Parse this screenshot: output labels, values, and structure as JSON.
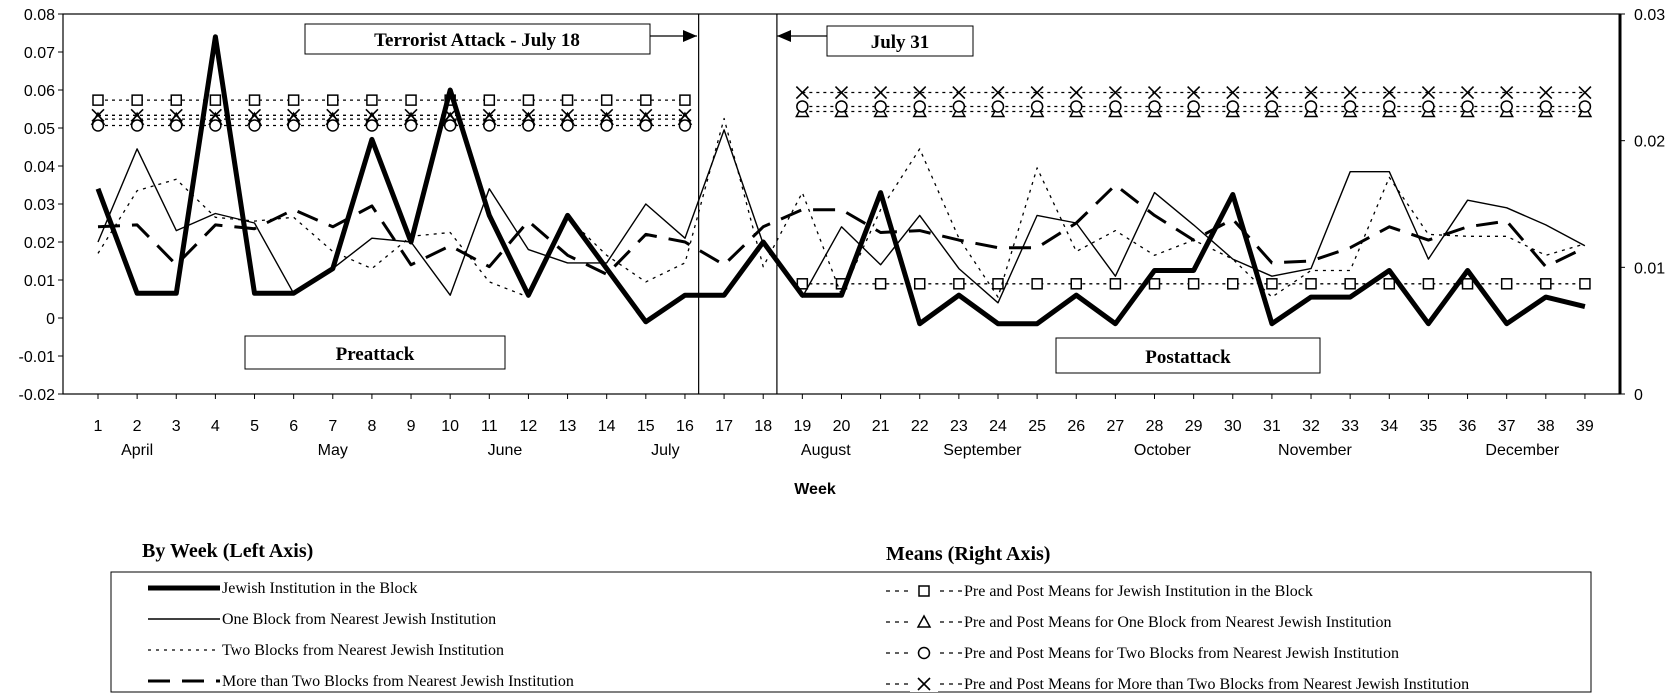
{
  "chart_data": {
    "type": "line",
    "xlabel": "Week",
    "x": [
      1,
      2,
      3,
      4,
      5,
      6,
      7,
      8,
      9,
      10,
      11,
      12,
      13,
      14,
      15,
      16,
      17,
      18,
      19,
      20,
      21,
      22,
      23,
      24,
      25,
      26,
      27,
      28,
      29,
      30,
      31,
      32,
      33,
      34,
      35,
      36,
      37,
      38,
      39
    ],
    "months": [
      {
        "label": "April",
        "week": 2
      },
      {
        "label": "May",
        "week": 7
      },
      {
        "label": "June",
        "week": 11.4
      },
      {
        "label": "July",
        "week": 15.5
      },
      {
        "label": "August",
        "week": 19.6
      },
      {
        "label": "September",
        "week": 23.6
      },
      {
        "label": "October",
        "week": 28.2
      },
      {
        "label": "November",
        "week": 32.1
      },
      {
        "label": "December",
        "week": 37.4
      }
    ],
    "y_left": {
      "min": -0.02,
      "max": 0.08,
      "ticks": [
        "-0.02",
        "-0.01",
        "0",
        "0.01",
        "0.02",
        "0.03",
        "0.04",
        "0.05",
        "0.06",
        "0.07",
        "0.08"
      ]
    },
    "y_right": {
      "min": 0,
      "max": 0.03,
      "ticks": [
        "0",
        "0.01",
        "0.02",
        "0.03"
      ]
    },
    "attack_lines": [
      16.35,
      18.35
    ],
    "annotations": {
      "attack": "Terrorist Attack - July 18",
      "july31": "July 31",
      "pre": "Preattack",
      "post": "Postattack"
    },
    "series": [
      {
        "name": "Jewish Institution in the Block",
        "style": "thick",
        "values": [
          0.034,
          0.0065,
          0.0065,
          0.074,
          0.0065,
          0.0065,
          0.013,
          0.047,
          0.02,
          0.06,
          0.027,
          0.006,
          0.027,
          0.013,
          -0.001,
          0.006,
          0.006,
          0.02,
          0.006,
          0.006,
          0.033,
          -0.0015,
          0.006,
          -0.0015,
          -0.0015,
          0.006,
          -0.0015,
          0.0125,
          0.0125,
          0.0325,
          -0.0015,
          0.0055,
          0.0055,
          0.0125,
          -0.0015,
          0.0125,
          -0.0015,
          0.0055,
          0.003
        ]
      },
      {
        "name": "One Block from Nearest Jewish Institution",
        "style": "thin",
        "values": [
          0.02,
          0.0445,
          0.023,
          0.0275,
          0.025,
          0.0065,
          0.013,
          0.021,
          0.02,
          0.006,
          0.034,
          0.018,
          0.0145,
          0.0145,
          0.03,
          0.021,
          0.0495,
          0.0195,
          0.0055,
          0.024,
          0.014,
          0.027,
          0.013,
          0.004,
          0.027,
          0.025,
          0.011,
          0.033,
          0.0245,
          0.0155,
          0.011,
          0.013,
          0.0385,
          0.0385,
          0.0155,
          0.031,
          0.029,
          0.0245,
          0.019
        ]
      },
      {
        "name": "Two Blocks from Nearest Jewish Institution",
        "style": "dotted",
        "values": [
          0.017,
          0.0335,
          0.0365,
          0.0265,
          0.0255,
          0.0265,
          0.0175,
          0.013,
          0.0215,
          0.0225,
          0.0095,
          0.0055,
          0.0265,
          0.0165,
          0.0095,
          0.0145,
          0.0525,
          0.0135,
          0.033,
          0.006,
          0.0285,
          0.0445,
          0.021,
          0.0055,
          0.0395,
          0.0175,
          0.023,
          0.0165,
          0.0205,
          0.0155,
          0.0055,
          0.0125,
          0.0125,
          0.037,
          0.022,
          0.0215,
          0.0215,
          0.0165,
          0.0195
        ]
      },
      {
        "name": "More than Two Blocks from Nearest Jewish Institution",
        "style": "dashed",
        "values": [
          0.024,
          0.0245,
          0.014,
          0.0245,
          0.0235,
          0.0285,
          0.024,
          0.0295,
          0.014,
          0.019,
          0.0135,
          0.0255,
          0.0165,
          0.0115,
          0.022,
          0.02,
          0.014,
          0.024,
          0.0285,
          0.0285,
          0.0225,
          0.023,
          0.0205,
          0.0185,
          0.0185,
          0.025,
          0.035,
          0.027,
          0.0205,
          0.026,
          0.0145,
          0.015,
          0.0185,
          0.024,
          0.0205,
          0.024,
          0.0255,
          0.0135,
          0.0185
        ]
      }
    ],
    "means": [
      {
        "name": "Pre and Post Means for Jewish Institution in the Block",
        "marker": "square",
        "pre": 0.0232,
        "post": 0.0087
      },
      {
        "name": "Pre and Post Means for One Block from Nearest Jewish Institution",
        "marker": "triangle",
        "pre": 0.0217,
        "post": 0.0223
      },
      {
        "name": "Pre and Post Means for Two Blocks from Nearest Jewish Institution",
        "marker": "circle",
        "pre": 0.0212,
        "post": 0.0227
      },
      {
        "name": "Pre and Post Means for More than Two Blocks from Nearest Jewish Institution",
        "marker": "x",
        "pre": 0.022,
        "post": 0.0238
      }
    ],
    "legend": {
      "left_title": "By Week (Left Axis)",
      "right_title": "Means (Right Axis)"
    }
  }
}
